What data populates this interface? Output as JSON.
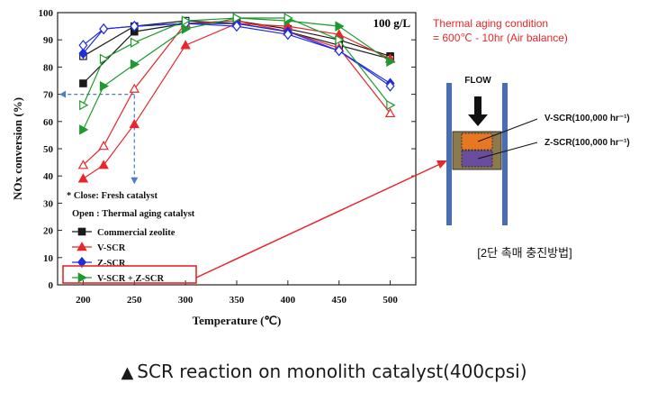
{
  "chart_data": {
    "type": "line",
    "title": "",
    "annotation": "100 g/L",
    "xlabel": "Temperature (℃)",
    "ylabel": "NOx conversion (%)",
    "xlim": [
      175,
      525
    ],
    "ylim": [
      0,
      100
    ],
    "xticks": [
      200,
      250,
      300,
      350,
      400,
      450,
      500
    ],
    "yticks": [
      0,
      10,
      20,
      30,
      40,
      50,
      60,
      70,
      80,
      90,
      100
    ],
    "grid": false,
    "legend_position": "bottom-left",
    "legend_notes": [
      "* Close: Fresh catalyst",
      "Open : Thermal aging catalyst"
    ],
    "series": [
      {
        "name": "Commercial zeolite",
        "color": "#1a1a1a",
        "marker": "square",
        "variant": "fresh",
        "x": [
          200,
          250,
          300,
          350,
          400,
          450,
          500
        ],
        "values": [
          74,
          93,
          96,
          97,
          94,
          90,
          84
        ]
      },
      {
        "name": "Commercial zeolite",
        "color": "#1a1a1a",
        "marker": "square",
        "variant": "aged",
        "x": [
          200,
          250,
          300,
          350,
          400,
          450,
          500
        ],
        "values": [
          84,
          95,
          97,
          96,
          93,
          88,
          83
        ]
      },
      {
        "name": "V-SCR",
        "color": "#e8262b",
        "marker": "triangle-up",
        "variant": "fresh",
        "x": [
          200,
          220,
          250,
          300,
          350,
          400,
          450,
          500
        ],
        "values": [
          39,
          44,
          59,
          88,
          96,
          95,
          92,
          83
        ]
      },
      {
        "name": "V-SCR",
        "color": "#e8262b",
        "marker": "triangle-up",
        "variant": "aged",
        "x": [
          200,
          220,
          250,
          300,
          350,
          400,
          450,
          500
        ],
        "values": [
          44,
          51,
          72,
          96,
          97,
          93,
          87,
          63
        ]
      },
      {
        "name": "Z-SCR",
        "color": "#1f2de0",
        "marker": "diamond",
        "variant": "fresh",
        "x": [
          200,
          220,
          250,
          300,
          350,
          400,
          450,
          500
        ],
        "values": [
          85,
          94,
          95,
          96,
          96,
          93,
          86,
          74
        ]
      },
      {
        "name": "Z-SCR",
        "color": "#1f2de0",
        "marker": "diamond",
        "variant": "aged",
        "x": [
          200,
          220,
          250,
          300,
          350,
          400,
          450,
          500
        ],
        "values": [
          88,
          94,
          95,
          96,
          95,
          92,
          86,
          73
        ]
      },
      {
        "name": "V-SCR + Z-SCR",
        "color": "#1c9a2e",
        "marker": "triangle-right",
        "variant": "fresh",
        "x": [
          200,
          220,
          250,
          300,
          350,
          400,
          450,
          500
        ],
        "values": [
          57,
          73,
          81,
          94,
          98,
          97,
          95,
          82
        ]
      },
      {
        "name": "V-SCR + Z-SCR",
        "color": "#1c9a2e",
        "marker": "triangle-right",
        "variant": "aged",
        "x": [
          200,
          220,
          250,
          300,
          350,
          400,
          450,
          500
        ],
        "values": [
          66,
          83,
          89,
          97,
          98,
          98,
          90,
          66
        ]
      }
    ],
    "guide_color": "#4a7fc1"
  },
  "condition": {
    "line1": "Thermal aging condition",
    "line2": "= 600℃ - 10hr (Air balance)",
    "color": "#e8262b"
  },
  "reactor": {
    "flow_label": "FLOW",
    "v_label": "V-SCR(100,000 hr⁻¹)",
    "z_label": "Z-SCR(100,000 hr⁻¹)",
    "method_label": "[2단 촉매 충진방법]",
    "v_color": "#e87722",
    "z_color": "#6b4d9e",
    "wall_color": "#4a6fb0",
    "pointer_color": "#e8262b"
  },
  "caption": {
    "symbol": "▲",
    "text": "SCR reaction on monolith catalyst(400cpsi)"
  }
}
